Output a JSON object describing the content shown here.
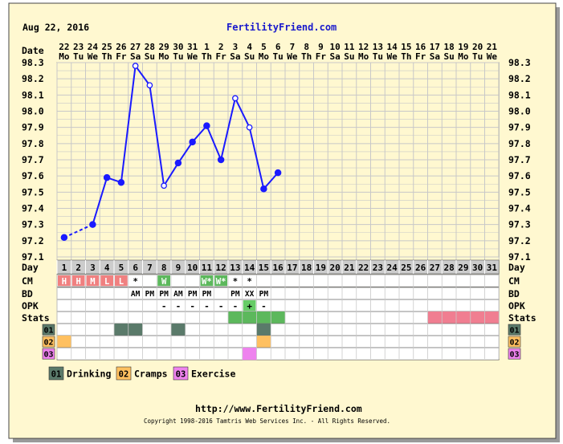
{
  "header": {
    "date": "Aug 22, 2016",
    "site": "FertilityFriend.com"
  },
  "footer": {
    "url": "http://www.FertilityFriend.com",
    "copyright": "Copyright 1998-2016 Tamtris Web Services Inc. - All Rights Reserved."
  },
  "colors": {
    "panel_bg": "#fff8d0",
    "frame": "#777777",
    "line": "#1a1aff",
    "grid": "#c8c8c8",
    "row_header": "#cccccc",
    "menses_red": "#f08080",
    "cm_green": "#5cb85c",
    "stats_green": "#66cc66",
    "stats_pink": "#f07e91",
    "drinking": "#5a7a6a",
    "cramps": "#ffc060",
    "exercise": "#ee82ee"
  },
  "chart_data": {
    "type": "line",
    "title": "",
    "xlabel": "",
    "ylabel": "",
    "row_labels": {
      "date": "Date",
      "day": "Day",
      "cm": "CM",
      "bd": "BD",
      "opk": "OPK",
      "stats": "Stats"
    },
    "dates": [
      "22",
      "23",
      "24",
      "25",
      "26",
      "27",
      "28",
      "29",
      "30",
      "31",
      "1",
      "2",
      "3",
      "4",
      "5",
      "6",
      "7",
      "8",
      "9",
      "10",
      "11",
      "12",
      "13",
      "14",
      "15",
      "16",
      "17",
      "18",
      "19",
      "20",
      "21"
    ],
    "weekdays": [
      "Mo",
      "Tu",
      "We",
      "Th",
      "Fr",
      "Sa",
      "Su",
      "Mo",
      "Tu",
      "We",
      "Th",
      "Fr",
      "Sa",
      "Su",
      "Mo",
      "Tu",
      "We",
      "Th",
      "Fr",
      "Sa",
      "Su",
      "Mo",
      "Tu",
      "We",
      "Th",
      "Fr",
      "Sa",
      "Su",
      "Mo",
      "Tu",
      "We"
    ],
    "days": [
      "1",
      "2",
      "3",
      "4",
      "5",
      "6",
      "7",
      "8",
      "9",
      "10",
      "11",
      "12",
      "13",
      "14",
      "15",
      "16",
      "17",
      "18",
      "19",
      "20",
      "21",
      "22",
      "23",
      "24",
      "25",
      "26",
      "27",
      "28",
      "29",
      "30",
      "31"
    ],
    "yticks": [
      "98.3",
      "98.2",
      "98.1",
      "98.0",
      "97.9",
      "97.8",
      "97.7",
      "97.6",
      "97.5",
      "97.4",
      "97.3",
      "97.2",
      "97.1"
    ],
    "ylim": [
      97.1,
      98.3
    ],
    "temps": [
      97.22,
      null,
      97.3,
      97.59,
      97.56,
      98.28,
      98.16,
      97.54,
      97.68,
      97.81,
      97.91,
      97.7,
      98.08,
      97.9,
      97.52,
      97.62,
      null,
      null,
      null,
      null,
      null,
      null,
      null,
      null,
      null,
      null,
      null,
      null,
      null,
      null,
      null
    ],
    "open_points": [
      6,
      7,
      8,
      13,
      14
    ],
    "dashed_segments": [
      [
        1,
        3
      ]
    ],
    "cm": [
      "H",
      "H",
      "M",
      "L",
      "L",
      "*",
      "",
      "W",
      "",
      "",
      "W*",
      "W*",
      "*",
      "*",
      "",
      "",
      "",
      "",
      "",
      "",
      "",
      "",
      "",
      "",
      "",
      "",
      "",
      "",
      "",
      "",
      ""
    ],
    "cm_colors": [
      "red",
      "red",
      "red",
      "red",
      "red",
      "",
      "",
      "green",
      "",
      "",
      "green",
      "green",
      "",
      "",
      "",
      "",
      "",
      "",
      "",
      "",
      "",
      "",
      "",
      "",
      "",
      "",
      "",
      "",
      "",
      "",
      ""
    ],
    "bd": [
      "",
      "",
      "",
      "",
      "",
      "AM",
      "PM",
      "PM",
      "AM",
      "PM",
      "PM",
      "",
      "PM",
      "XX",
      "PM",
      "",
      "",
      "",
      "",
      "",
      "",
      "",
      "",
      "",
      "",
      "",
      "",
      "",
      "",
      "",
      ""
    ],
    "opk": [
      "",
      "",
      "",
      "",
      "",
      "",
      "",
      "-",
      "-",
      "-",
      "-",
      "-",
      "-",
      "+",
      "-",
      "",
      "",
      "",
      "",
      "",
      "",
      "",
      "",
      "",
      "",
      "",
      "",
      "",
      "",
      "",
      ""
    ],
    "stats": [
      "",
      "",
      "",
      "",
      "",
      "",
      "",
      "",
      "",
      "",
      "",
      "",
      "green",
      "green",
      "green",
      "green",
      "",
      "",
      "",
      "",
      "",
      "",
      "",
      "",
      "",
      "",
      "pink",
      "pink",
      "pink",
      "pink",
      "pink"
    ],
    "custom_rows": [
      {
        "code": "01",
        "name": "Drinking",
        "color": "drinking",
        "days": [
          5,
          6,
          9,
          15
        ]
      },
      {
        "code": "02",
        "name": "Cramps",
        "color": "cramps",
        "days": [
          1,
          15
        ]
      },
      {
        "code": "03",
        "name": "Exercise",
        "color": "exercise",
        "days": [
          14
        ]
      }
    ]
  }
}
